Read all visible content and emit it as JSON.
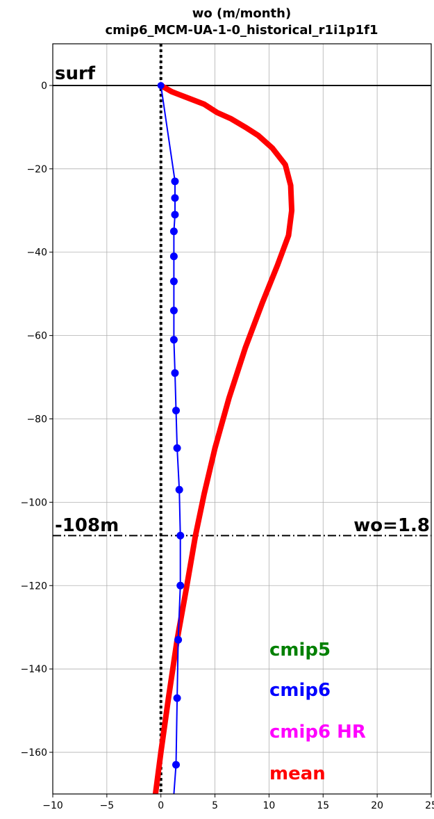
{
  "chart_data": {
    "type": "line",
    "title_line1": "wo (m/month)",
    "title_line2": "cmip6_MCM-UA-1-0_historical_r1i1p1f1",
    "xlabel": "",
    "ylabel": "",
    "xlim": [
      -10,
      25
    ],
    "ylim": [
      -170,
      10
    ],
    "grid": true,
    "x_ticks": [
      -10,
      -5,
      0,
      5,
      10,
      15,
      20,
      25
    ],
    "y_ticks": [
      0,
      -20,
      -40,
      -60,
      -80,
      -100,
      -120,
      -140,
      -160
    ],
    "x_tick_labels": [
      "−10",
      "−5",
      "0",
      "5",
      "10",
      "15",
      "20",
      "25"
    ],
    "y_tick_labels": [
      "0",
      "−20",
      "−40",
      "−60",
      "−80",
      "−100",
      "−120",
      "−140",
      "−160"
    ],
    "surface_label": "surf",
    "surface_depth": 0,
    "depth_marker": {
      "depth": -108,
      "left_label": "-108m",
      "right_label": "wo=1.8"
    },
    "zero_line_x": 0,
    "series": [
      {
        "name": "cmip6",
        "color": "#0000ff",
        "markers": true,
        "points": [
          [
            0.0,
            0
          ],
          [
            1.3,
            -23
          ],
          [
            1.3,
            -27
          ],
          [
            1.3,
            -31
          ],
          [
            1.2,
            -35
          ],
          [
            1.2,
            -41
          ],
          [
            1.2,
            -47
          ],
          [
            1.2,
            -54
          ],
          [
            1.2,
            -61
          ],
          [
            1.3,
            -69
          ],
          [
            1.4,
            -78
          ],
          [
            1.5,
            -87
          ],
          [
            1.7,
            -97
          ],
          [
            1.8,
            -108
          ],
          [
            1.8,
            -120
          ],
          [
            1.6,
            -133
          ],
          [
            1.5,
            -147
          ],
          [
            1.4,
            -163
          ],
          [
            1.2,
            -170
          ]
        ]
      },
      {
        "name": "mean",
        "color": "#ff0000",
        "markers": false,
        "points": [
          [
            0.0,
            0
          ],
          [
            1.0,
            -1.5
          ],
          [
            2.5,
            -3
          ],
          [
            4.0,
            -4.5
          ],
          [
            5.2,
            -6.5
          ],
          [
            6.5,
            -8
          ],
          [
            7.8,
            -10
          ],
          [
            9.0,
            -12
          ],
          [
            10.3,
            -15
          ],
          [
            11.5,
            -19
          ],
          [
            12.0,
            -24
          ],
          [
            12.1,
            -30
          ],
          [
            11.8,
            -36
          ],
          [
            10.8,
            -43
          ],
          [
            9.4,
            -52
          ],
          [
            7.8,
            -63
          ],
          [
            6.3,
            -75
          ],
          [
            5.0,
            -87
          ],
          [
            4.0,
            -98
          ],
          [
            3.2,
            -108
          ],
          [
            2.4,
            -120
          ],
          [
            1.5,
            -133
          ],
          [
            0.7,
            -147
          ],
          [
            0.0,
            -160
          ],
          [
            -0.5,
            -170
          ]
        ]
      }
    ],
    "legend": {
      "placement": "bottom-right",
      "entries": [
        {
          "label": "cmip5",
          "color": "#008000"
        },
        {
          "label": "cmip6",
          "color": "#0000ff"
        },
        {
          "label": "cmip6 HR",
          "color": "#ff00ff"
        },
        {
          "label": "mean",
          "color": "#ff0000"
        }
      ]
    }
  }
}
